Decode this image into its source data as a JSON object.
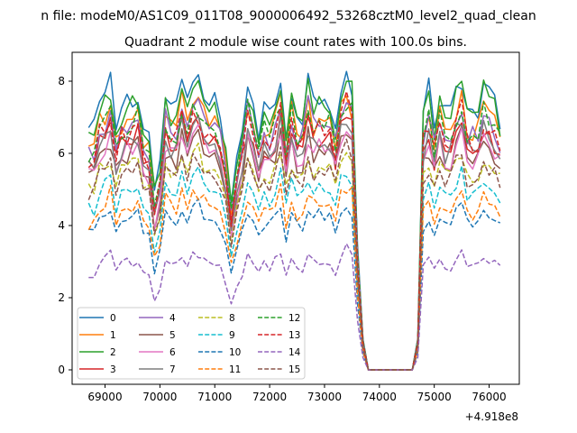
{
  "chart_data": {
    "type": "line",
    "suptitle": "n file: modeM0/AS1C09_011T08_9000006492_53268cztM0_level2_quad_clean",
    "title": "Quadrant 2 module wise count rates with 100.0s bins.",
    "xlabel": "",
    "ylabel": "",
    "x_offset_label": "+4.918e8",
    "xlim": [
      68400,
      76550
    ],
    "ylim": [
      -0.4,
      8.8
    ],
    "x_ticks": [
      69000,
      70000,
      71000,
      72000,
      73000,
      74000,
      75000,
      76000
    ],
    "x_tick_labels": [
      "69000",
      "70000",
      "71000",
      "72000",
      "73000",
      "74000",
      "75000",
      "76000"
    ],
    "y_ticks": [
      0,
      2,
      4,
      6,
      8
    ],
    "y_tick_labels": [
      "0",
      "2",
      "4",
      "6",
      "8"
    ],
    "grid": false,
    "legend_placement": "lower-left",
    "legend_columns": 4,
    "x_range": [
      68700,
      76200
    ],
    "bin": 100,
    "gap": [
      73700,
      74700
    ],
    "dip_times": [
      69900,
      71300
    ],
    "series": [
      {
        "name": "0",
        "color": "#1f77b4",
        "dash": "solid",
        "level": 7.5
      },
      {
        "name": "1",
        "color": "#ff7f0e",
        "dash": "solid",
        "level": 6.9
      },
      {
        "name": "2",
        "color": "#2ca02c",
        "dash": "solid",
        "level": 7.3
      },
      {
        "name": "3",
        "color": "#d62728",
        "dash": "solid",
        "level": 6.4
      },
      {
        "name": "4",
        "color": "#9467bd",
        "dash": "solid",
        "level": 6.8
      },
      {
        "name": "5",
        "color": "#8c564b",
        "dash": "solid",
        "level": 6.0
      },
      {
        "name": "6",
        "color": "#e377c2",
        "dash": "solid",
        "level": 6.1
      },
      {
        "name": "7",
        "color": "#7f7f7f",
        "dash": "solid",
        "level": 6.3
      },
      {
        "name": "8",
        "color": "#bcbd22",
        "dash": "dashed",
        "level": 5.6
      },
      {
        "name": "9",
        "color": "#17becf",
        "dash": "dashed",
        "level": 5.0
      },
      {
        "name": "10",
        "color": "#1f77b4",
        "dash": "dashed",
        "level": 4.2
      },
      {
        "name": "11",
        "color": "#ff7f0e",
        "dash": "dashed",
        "level": 4.6
      },
      {
        "name": "12",
        "color": "#2ca02c",
        "dash": "dashed",
        "level": 6.8
      },
      {
        "name": "13",
        "color": "#d62728",
        "dash": "dashed",
        "level": 6.6
      },
      {
        "name": "14",
        "color": "#9467bd",
        "dash": "dashed",
        "level": 3.0
      },
      {
        "name": "15",
        "color": "#8c564b",
        "dash": "dashed",
        "level": 5.5
      }
    ]
  }
}
